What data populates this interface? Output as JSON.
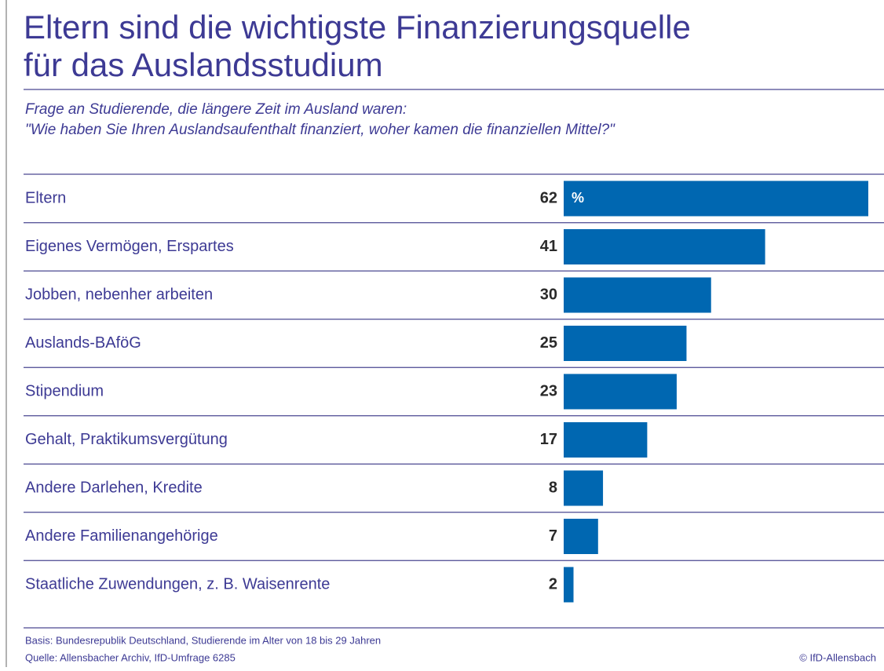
{
  "chart_data": {
    "type": "bar",
    "title": [
      "Eltern sind die wichtigste Finanzierungsquelle",
      "für das Auslandsstudium"
    ],
    "subtitle": [
      "Frage an Studierende, die längere Zeit im Ausland waren:",
      "\"Wie haben Sie Ihren Auslandsaufenthalt finanziert, woher kamen die finanziellen Mittel?\""
    ],
    "categories": [
      "Eltern",
      "Eigenes Vermögen, Erspartes",
      "Jobben, nebenher arbeiten",
      "Auslands-BAföG",
      "Stipendium",
      "Gehalt, Praktikumsvergütung",
      "Andere Darlehen, Kredite",
      "Andere Familienangehörige",
      "Staatliche Zuwendungen, z. B. Waisenrente"
    ],
    "values": [
      62,
      41,
      30,
      25,
      23,
      17,
      8,
      7,
      2
    ],
    "unit": "%",
    "color": "#0067b1",
    "notes": [
      "Basis: Bundesrepublik Deutschland, Studierende im Alter von 18 bis 29 Jahren",
      "Quelle: Allensbacher Archiv, IfD-Umfrage 6285"
    ],
    "source": "© IfD-Allensbach"
  }
}
